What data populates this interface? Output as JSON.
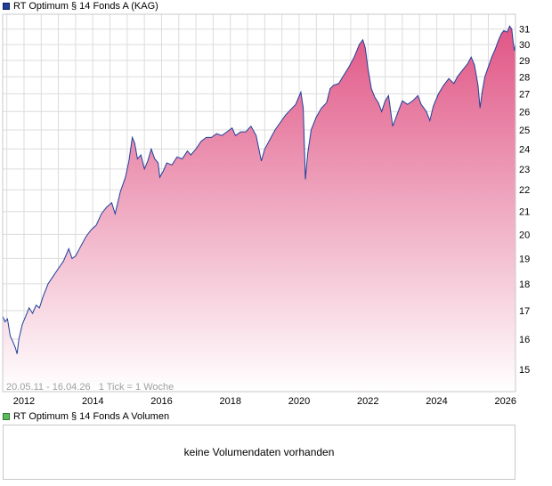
{
  "legend": {
    "price_label": "RT Optimum § 14 Fonds A (KAG)",
    "volume_label": "RT Optimum § 14 Fonds A Volumen"
  },
  "period_info": "20.05.11 - 16.04.26   1 Tick = 1 Woche",
  "volume_panel": {
    "message": "keine Volumendaten vorhanden"
  },
  "colors": {
    "line": "#1f3f9a",
    "fill_top": "#e05585",
    "fill_bottom": "#ffffff",
    "grid": "#dcdcdc",
    "volume_swatch": "#5dbb5d"
  },
  "chart_data": {
    "type": "area",
    "scale": "log",
    "title": "RT Optimum § 14 Fonds A (KAG)",
    "xlabel": "",
    "ylabel": "",
    "xlim": [
      2011.38,
      2026.29
    ],
    "ylim": [
      14.3,
      32.0
    ],
    "grid": true,
    "y_ticks": [
      15,
      16,
      17,
      18,
      19,
      20,
      21,
      22,
      23,
      24,
      25,
      26,
      27,
      28,
      29,
      30,
      31
    ],
    "x_ticks": [
      {
        "pos": 2012,
        "label": "2012"
      },
      {
        "pos": 2014,
        "label": "2014"
      },
      {
        "pos": 2016,
        "label": "2016"
      },
      {
        "pos": 2018,
        "label": "2018"
      },
      {
        "pos": 2020,
        "label": "2020"
      },
      {
        "pos": 2022,
        "label": "2022"
      },
      {
        "pos": 2024,
        "label": "2024"
      },
      {
        "pos": 2026,
        "label": "2026"
      }
    ],
    "x_grid": [
      2011.5,
      2012,
      2012.5,
      2013,
      2013.5,
      2014,
      2014.5,
      2015,
      2015.5,
      2016,
      2016.5,
      2017,
      2017.5,
      2018,
      2018.5,
      2019,
      2019.5,
      2020,
      2020.5,
      2021,
      2021.5,
      2022,
      2022.5,
      2023,
      2023.5,
      2024,
      2024.5,
      2025,
      2025.5,
      2026
    ],
    "series": [
      {
        "name": "RT Optimum § 14 Fonds A (KAG)",
        "points": [
          [
            2011.38,
            16.8
          ],
          [
            2011.45,
            16.6
          ],
          [
            2011.52,
            16.7
          ],
          [
            2011.6,
            16.1
          ],
          [
            2011.68,
            15.9
          ],
          [
            2011.75,
            15.7
          ],
          [
            2011.8,
            15.5
          ],
          [
            2011.85,
            16.0
          ],
          [
            2011.95,
            16.5
          ],
          [
            2012.05,
            16.8
          ],
          [
            2012.15,
            17.1
          ],
          [
            2012.25,
            16.9
          ],
          [
            2012.35,
            17.2
          ],
          [
            2012.45,
            17.1
          ],
          [
            2012.55,
            17.5
          ],
          [
            2012.7,
            18.0
          ],
          [
            2012.85,
            18.3
          ],
          [
            2013.0,
            18.6
          ],
          [
            2013.15,
            18.9
          ],
          [
            2013.3,
            19.4
          ],
          [
            2013.4,
            19.0
          ],
          [
            2013.5,
            19.1
          ],
          [
            2013.65,
            19.5
          ],
          [
            2013.8,
            19.9
          ],
          [
            2013.95,
            20.2
          ],
          [
            2014.1,
            20.4
          ],
          [
            2014.25,
            20.9
          ],
          [
            2014.4,
            21.2
          ],
          [
            2014.55,
            21.4
          ],
          [
            2014.65,
            20.9
          ],
          [
            2014.8,
            21.9
          ],
          [
            2014.95,
            22.6
          ],
          [
            2015.05,
            23.4
          ],
          [
            2015.15,
            24.6
          ],
          [
            2015.22,
            24.3
          ],
          [
            2015.3,
            23.5
          ],
          [
            2015.4,
            23.7
          ],
          [
            2015.5,
            23.0
          ],
          [
            2015.6,
            23.4
          ],
          [
            2015.7,
            24.0
          ],
          [
            2015.8,
            23.5
          ],
          [
            2015.9,
            23.3
          ],
          [
            2015.95,
            22.6
          ],
          [
            2016.05,
            22.9
          ],
          [
            2016.15,
            23.3
          ],
          [
            2016.3,
            23.2
          ],
          [
            2016.45,
            23.6
          ],
          [
            2016.6,
            23.5
          ],
          [
            2016.75,
            23.9
          ],
          [
            2016.85,
            23.7
          ],
          [
            2017.0,
            24.0
          ],
          [
            2017.15,
            24.4
          ],
          [
            2017.3,
            24.6
          ],
          [
            2017.45,
            24.6
          ],
          [
            2017.6,
            24.8
          ],
          [
            2017.75,
            24.7
          ],
          [
            2017.9,
            24.9
          ],
          [
            2018.05,
            25.1
          ],
          [
            2018.15,
            24.7
          ],
          [
            2018.3,
            24.9
          ],
          [
            2018.45,
            24.9
          ],
          [
            2018.6,
            25.2
          ],
          [
            2018.75,
            24.7
          ],
          [
            2018.9,
            23.4
          ],
          [
            2019.0,
            24.0
          ],
          [
            2019.15,
            24.5
          ],
          [
            2019.3,
            25.0
          ],
          [
            2019.45,
            25.4
          ],
          [
            2019.6,
            25.8
          ],
          [
            2019.75,
            26.1
          ],
          [
            2019.9,
            26.4
          ],
          [
            2020.05,
            27.1
          ],
          [
            2020.12,
            26.2
          ],
          [
            2020.18,
            22.5
          ],
          [
            2020.25,
            23.8
          ],
          [
            2020.35,
            25.0
          ],
          [
            2020.5,
            25.7
          ],
          [
            2020.65,
            26.2
          ],
          [
            2020.8,
            26.5
          ],
          [
            2020.9,
            27.3
          ],
          [
            2021.0,
            27.5
          ],
          [
            2021.15,
            27.6
          ],
          [
            2021.3,
            28.1
          ],
          [
            2021.45,
            28.6
          ],
          [
            2021.6,
            29.2
          ],
          [
            2021.75,
            30.0
          ],
          [
            2021.85,
            30.3
          ],
          [
            2021.92,
            29.8
          ],
          [
            2022.0,
            28.5
          ],
          [
            2022.1,
            27.3
          ],
          [
            2022.2,
            26.8
          ],
          [
            2022.3,
            26.5
          ],
          [
            2022.4,
            26.0
          ],
          [
            2022.5,
            26.6
          ],
          [
            2022.6,
            26.9
          ],
          [
            2022.72,
            25.2
          ],
          [
            2022.8,
            25.6
          ],
          [
            2022.9,
            26.1
          ],
          [
            2023.0,
            26.6
          ],
          [
            2023.15,
            26.4
          ],
          [
            2023.3,
            26.6
          ],
          [
            2023.45,
            26.9
          ],
          [
            2023.55,
            26.4
          ],
          [
            2023.7,
            26.0
          ],
          [
            2023.8,
            25.5
          ],
          [
            2023.9,
            26.3
          ],
          [
            2024.05,
            27.0
          ],
          [
            2024.2,
            27.5
          ],
          [
            2024.35,
            27.9
          ],
          [
            2024.5,
            27.6
          ],
          [
            2024.6,
            28.0
          ],
          [
            2024.75,
            28.4
          ],
          [
            2024.9,
            28.8
          ],
          [
            2025.0,
            29.2
          ],
          [
            2025.1,
            28.7
          ],
          [
            2025.2,
            27.5
          ],
          [
            2025.26,
            26.2
          ],
          [
            2025.32,
            27.1
          ],
          [
            2025.4,
            28.0
          ],
          [
            2025.5,
            28.6
          ],
          [
            2025.6,
            29.2
          ],
          [
            2025.7,
            29.7
          ],
          [
            2025.8,
            30.3
          ],
          [
            2025.88,
            30.7
          ],
          [
            2025.95,
            30.9
          ],
          [
            2026.05,
            30.8
          ],
          [
            2026.12,
            31.2
          ],
          [
            2026.18,
            31.0
          ],
          [
            2026.22,
            30.2
          ],
          [
            2026.26,
            29.6
          ],
          [
            2026.29,
            30.0
          ]
        ]
      }
    ]
  }
}
